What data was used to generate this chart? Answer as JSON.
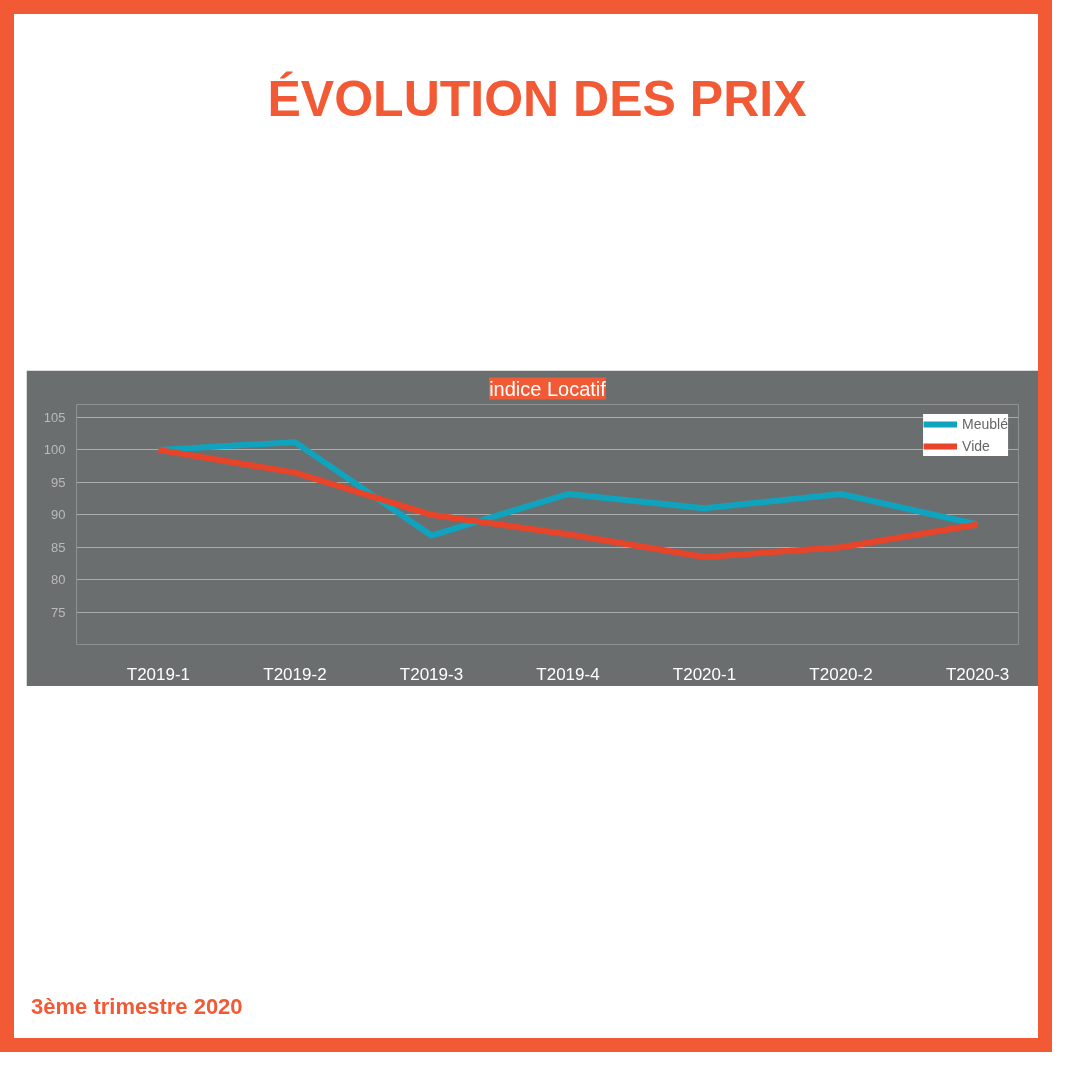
{
  "chart_data": {
    "type": "line",
    "title": "ÉVOLUTION DES PRIX",
    "subtitle": "indice Locatif",
    "categories": [
      "T2019-1",
      "T2019-2",
      "T2019-3",
      "T2019-4",
      "T2020-1",
      "T2020-2",
      "T2020-3"
    ],
    "series": [
      {
        "name": "Meublé",
        "color": "#0fa3bd",
        "values": [
          100,
          101.2,
          86.8,
          93.2,
          91,
          93.2,
          88.5
        ]
      },
      {
        "name": "Vide",
        "color": "#e8442a",
        "values": [
          100,
          96.5,
          90,
          87,
          83.5,
          85,
          88.5
        ]
      }
    ],
    "ylim": [
      70,
      107
    ],
    "yticks": [
      75,
      80,
      85,
      90,
      95,
      100,
      105
    ],
    "grid": "y",
    "legend": "top right",
    "marker": "none",
    "line_style": "solid",
    "annotations": [
      "3ème trimestre 2020"
    ]
  }
}
